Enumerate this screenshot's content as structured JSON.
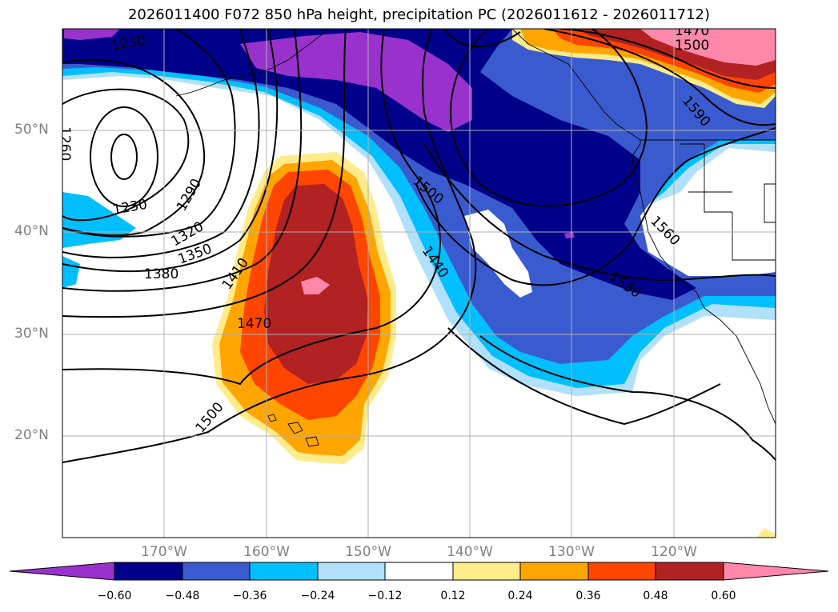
{
  "title": "2026011400 F072 850 hPa height, precipitation PC (2026011612 - 2026011712)",
  "lat_labels": [
    "50°N",
    "40°N",
    "30°N",
    "20°N"
  ],
  "lon_labels": [
    "170°W",
    "160°W",
    "150°W",
    "140°W",
    "130°W",
    "120°W"
  ],
  "contour_labels": [
    "1230",
    "1230",
    "1260",
    "1290",
    "1320",
    "1350",
    "1380",
    "1410",
    "1470",
    "1500",
    "1500",
    "1440",
    "1530",
    "1560",
    "1590",
    "1500",
    "1470"
  ],
  "colorbar": {
    "ticks": [
      "−0.60",
      "−0.48",
      "−0.36",
      "−0.24",
      "−0.12",
      "0.12",
      "0.24",
      "0.36",
      "0.48",
      "0.60"
    ],
    "colors": [
      "#9932cc",
      "#00008b",
      "#3a5bcf",
      "#00bfff",
      "#b0e0fa",
      "#ffffff",
      "#ffeb8a",
      "#ffa500",
      "#ff4500",
      "#b22222",
      "#ff88aa"
    ]
  }
}
